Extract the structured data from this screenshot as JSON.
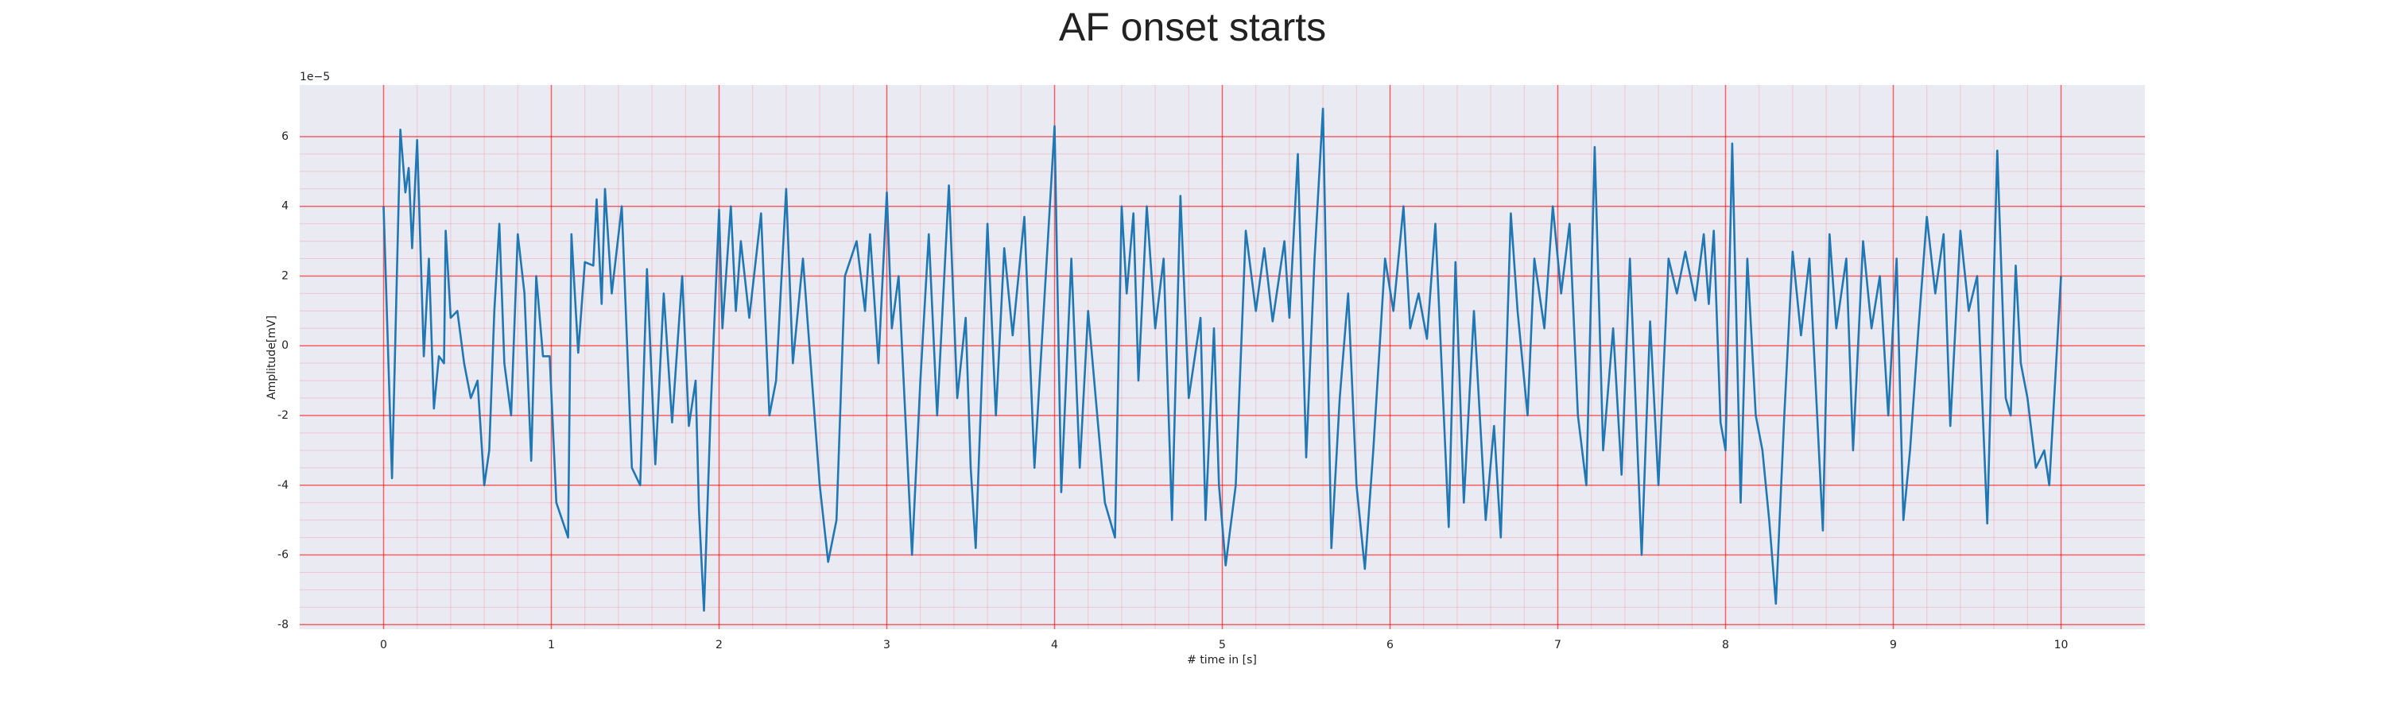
{
  "chart_data": {
    "type": "line",
    "title": "AF onset starts",
    "xlabel": "# time in [s]",
    "ylabel": "Amplitude[mV]",
    "y_offset_text": "1e−5",
    "x": [
      0,
      0.05,
      0.1,
      0.13,
      0.15,
      0.17,
      0.2,
      0.24,
      0.27,
      0.3,
      0.33,
      0.36,
      0.37,
      0.4,
      0.44,
      0.48,
      0.52,
      0.56,
      0.6,
      0.63,
      0.66,
      0.69,
      0.72,
      0.76,
      0.8,
      0.84,
      0.88,
      0.91,
      0.95,
      0.99,
      1.03,
      1.1,
      1.12,
      1.16,
      1.2,
      1.25,
      1.27,
      1.3,
      1.32,
      1.36,
      1.42,
      1.48,
      1.53,
      1.57,
      1.62,
      1.67,
      1.72,
      1.78,
      1.82,
      1.86,
      1.88,
      1.91,
      1.95,
      2.0,
      2.02,
      2.07,
      2.1,
      2.13,
      2.18,
      2.25,
      2.3,
      2.34,
      2.4,
      2.44,
      2.5,
      2.6,
      2.65,
      2.7,
      2.75,
      2.82,
      2.87,
      2.9,
      2.95,
      3.0,
      3.03,
      3.07,
      3.15,
      3.2,
      3.25,
      3.3,
      3.37,
      3.42,
      3.47,
      3.5,
      3.53,
      3.6,
      3.65,
      3.7,
      3.75,
      3.82,
      3.88,
      4.0,
      4.04,
      4.1,
      4.15,
      4.2,
      4.3,
      4.36,
      4.4,
      4.43,
      4.47,
      4.5,
      4.55,
      4.6,
      4.65,
      4.7,
      4.75,
      4.8,
      4.87,
      4.9,
      4.95,
      4.98,
      5.02,
      5.08,
      5.14,
      5.2,
      5.25,
      5.3,
      5.37,
      5.4,
      5.45,
      5.5,
      5.55,
      5.6,
      5.65,
      5.7,
      5.75,
      5.8,
      5.85,
      5.9,
      5.97,
      6.02,
      6.08,
      6.12,
      6.17,
      6.22,
      6.27,
      6.35,
      6.39,
      6.44,
      6.5,
      6.57,
      6.62,
      6.66,
      6.72,
      6.76,
      6.82,
      6.86,
      6.92,
      6.97,
      7.02,
      7.07,
      7.12,
      7.17,
      7.22,
      7.27,
      7.33,
      7.38,
      7.43,
      7.5,
      7.55,
      7.6,
      7.66,
      7.71,
      7.76,
      7.82,
      7.87,
      7.9,
      7.93,
      7.97,
      8.0,
      8.04,
      8.09,
      8.13,
      8.18,
      8.22,
      8.26,
      8.3,
      8.35,
      8.4,
      8.45,
      8.5,
      8.58,
      8.62,
      8.66,
      8.72,
      8.76,
      8.82,
      8.87,
      8.92,
      8.97,
      9.02,
      9.06,
      9.1,
      9.15,
      9.2,
      9.25,
      9.3,
      9.34,
      9.4,
      9.45,
      9.5,
      9.56,
      9.62,
      9.67,
      9.7,
      9.73,
      9.76,
      9.8,
      9.85,
      9.9,
      9.93,
      10.0
    ],
    "series": [
      {
        "name": "Amplitude[mV]",
        "color": "#1f77b4",
        "values": [
          4.0,
          -3.8,
          6.2,
          4.4,
          5.1,
          2.8,
          5.9,
          -0.3,
          2.5,
          -1.8,
          -0.3,
          -0.5,
          3.3,
          0.8,
          1.0,
          -0.5,
          -1.5,
          -1.0,
          -4.0,
          -3.0,
          1.0,
          3.5,
          -0.5,
          -2.0,
          3.2,
          1.5,
          -3.3,
          2.0,
          -0.3,
          -0.3,
          -4.5,
          -5.5,
          3.2,
          -0.2,
          2.4,
          2.3,
          4.2,
          1.2,
          4.5,
          1.5,
          4.0,
          -3.5,
          -4.0,
          2.2,
          -3.4,
          1.5,
          -2.2,
          2.0,
          -2.3,
          -1.0,
          -4.7,
          -7.6,
          -1.8,
          3.9,
          0.5,
          4.0,
          1.0,
          3.0,
          0.8,
          3.8,
          -2.0,
          -1.0,
          4.5,
          -0.5,
          2.5,
          -4.0,
          -6.2,
          -5.0,
          2.0,
          3.0,
          1.0,
          3.2,
          -0.5,
          4.4,
          0.5,
          2.0,
          -6.0,
          -1.0,
          3.2,
          -2.0,
          4.6,
          -1.5,
          0.8,
          -3.5,
          -5.8,
          3.5,
          -2.0,
          2.8,
          0.3,
          3.7,
          -3.5,
          6.3,
          -4.2,
          2.5,
          -3.5,
          1.0,
          -4.5,
          -5.5,
          4.0,
          1.5,
          3.8,
          -1.0,
          4.0,
          0.5,
          2.5,
          -5.0,
          4.3,
          -1.5,
          0.8,
          -5.0,
          0.5,
          -4.0,
          -6.3,
          -4.0,
          3.3,
          1.0,
          2.8,
          0.7,
          3.0,
          0.8,
          5.5,
          -3.2,
          2.5,
          6.8,
          -5.8,
          -1.5,
          1.5,
          -4.0,
          -6.4,
          -3.0,
          2.5,
          1.0,
          4.0,
          0.5,
          1.5,
          0.2,
          3.5,
          -5.2,
          2.4,
          -4.5,
          1.0,
          -5.0,
          -2.3,
          -5.5,
          3.8,
          1.0,
          -2.0,
          2.5,
          0.5,
          4.0,
          1.5,
          3.5,
          -2.0,
          -4.0,
          5.7,
          -3.0,
          0.5,
          -3.7,
          2.5,
          -6.0,
          0.7,
          -4.0,
          2.5,
          1.5,
          2.7,
          1.3,
          3.2,
          1.2,
          3.3,
          -2.2,
          -3.0,
          5.8,
          -4.5,
          2.5,
          -2.0,
          -3.0,
          -5.0,
          -7.4,
          -2.0,
          2.7,
          0.3,
          2.5,
          -5.3,
          3.2,
          0.5,
          2.5,
          -3.0,
          3.0,
          0.5,
          2.0,
          -2.0,
          2.5,
          -5.0,
          -3.0,
          0.5,
          3.7,
          1.5,
          3.2,
          -2.3,
          3.3,
          1.0,
          2.0,
          -5.1,
          5.6,
          -1.5,
          -2.0,
          2.3,
          -0.5,
          -1.5,
          -3.5,
          -3.0,
          -4.0,
          2.0
        ]
      }
    ],
    "xlim": [
      -0.5,
      10.5
    ],
    "xticks": [
      0,
      1,
      2,
      3,
      4,
      5,
      6,
      7,
      8,
      9,
      10
    ],
    "ylim": [
      -8.13,
      7.48
    ],
    "yticks": [
      -8,
      -6,
      -4,
      -2,
      0,
      2,
      4,
      6
    ],
    "grid": true,
    "grid_color": "#ff0000",
    "minor_grid": true,
    "background": "#eaeaf2"
  }
}
